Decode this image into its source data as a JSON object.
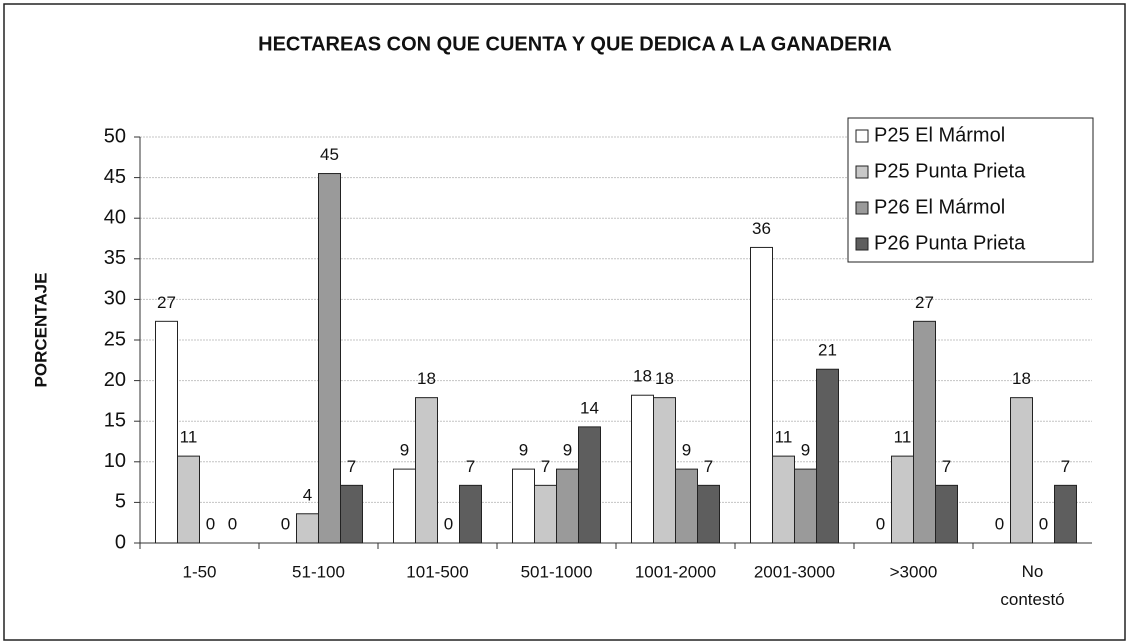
{
  "chart_data": {
    "type": "bar",
    "title": "HECTAREAS CON QUE CUENTA Y QUE DEDICA A LA GANADERIA",
    "y_label": "PORCENTAJE",
    "categories": [
      "1-50",
      "51-100",
      "101-500",
      "501-1000",
      "1001-2000",
      "2001-3000",
      ">3000",
      "No contestó"
    ],
    "series": [
      {
        "name": "P25 El Mármol",
        "color": "#ffffff",
        "values": [
          27.3,
          0,
          9.1,
          9.1,
          18.2,
          36.4,
          0,
          0
        ],
        "value_labels": [
          "27",
          "0",
          "9",
          "9",
          "18",
          "36",
          "0",
          "0"
        ]
      },
      {
        "name": "P25 Punta Prieta",
        "color": "#c8c8c8",
        "values": [
          10.7,
          3.6,
          17.9,
          7.1,
          17.9,
          10.7,
          10.7,
          17.9
        ],
        "value_labels": [
          "11",
          "4",
          "18",
          "7",
          "18",
          "11",
          "11",
          "18"
        ]
      },
      {
        "name": "P26 El Mármol",
        "color": "#9a9a9a",
        "values": [
          0,
          45.5,
          0,
          9.1,
          9.1,
          9.1,
          27.3,
          0
        ],
        "value_labels": [
          "0",
          "45",
          "0",
          "9",
          "9",
          "9",
          "27",
          "0"
        ]
      },
      {
        "name": "P26 Punta Prieta",
        "color": "#5e5e5e",
        "values": [
          0,
          7.1,
          7.1,
          14.3,
          7.1,
          21.4,
          7.1,
          7.1
        ],
        "value_labels": [
          "0",
          "7",
          "7",
          "14",
          "7",
          "21",
          "7",
          "7"
        ]
      }
    ],
    "ylim": [
      0,
      50
    ],
    "yticks": [
      0,
      5,
      10,
      15,
      20,
      25,
      30,
      35,
      40,
      45,
      50
    ],
    "grid": true,
    "legend": "top-right"
  }
}
